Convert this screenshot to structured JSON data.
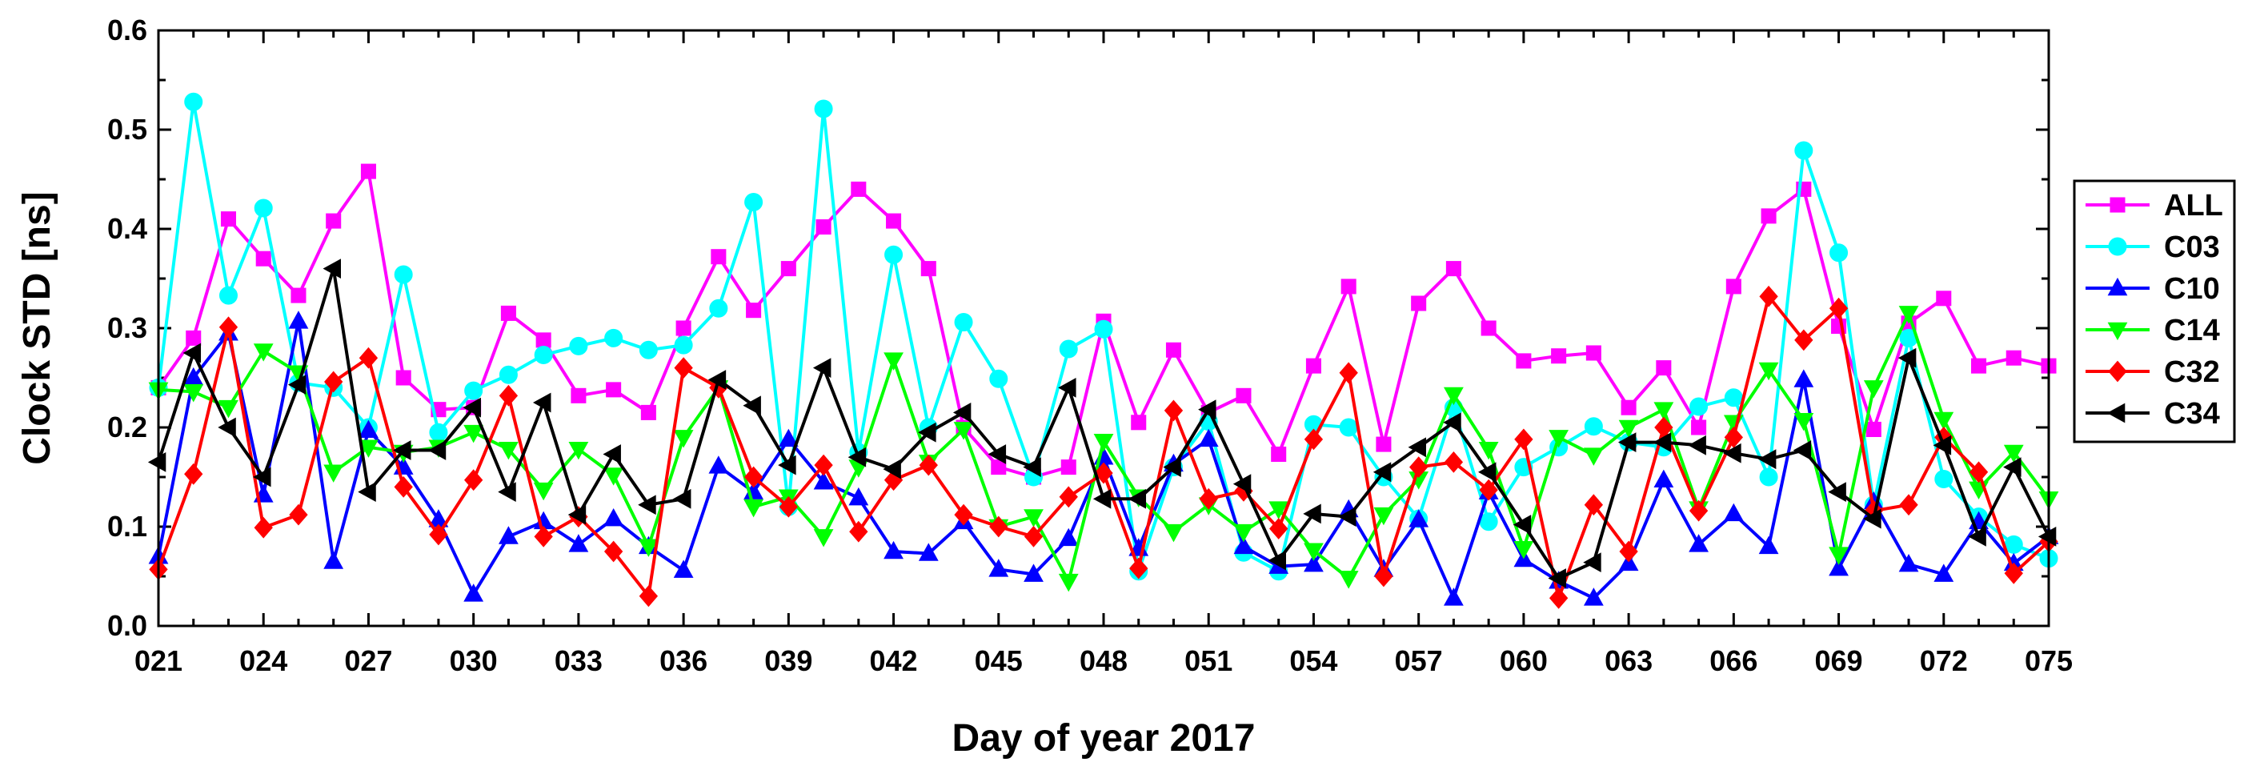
{
  "chart_data": {
    "type": "line",
    "title": "",
    "xlabel": "Day of year 2017",
    "ylabel": "Clock STD [ns]",
    "xlim": [
      21,
      75
    ],
    "ylim": [
      0,
      0.6
    ],
    "xticks": [
      "021",
      "024",
      "027",
      "030",
      "033",
      "036",
      "039",
      "042",
      "045",
      "048",
      "051",
      "054",
      "057",
      "060",
      "063",
      "066",
      "069",
      "072",
      "075"
    ],
    "yticks": [
      "0.0",
      "0.1",
      "0.2",
      "0.3",
      "0.4",
      "0.5",
      "0.6"
    ],
    "grid": false,
    "legend_position": "right",
    "x": [
      21,
      22,
      23,
      24,
      25,
      26,
      27,
      28,
      29,
      30,
      31,
      32,
      33,
      34,
      35,
      36,
      37,
      38,
      39,
      40,
      41,
      42,
      43,
      44,
      45,
      46,
      47,
      48,
      49,
      50,
      51,
      52,
      53,
      54,
      55,
      56,
      57,
      58,
      59,
      60,
      61,
      62,
      63,
      64,
      65,
      66,
      67,
      68,
      69,
      70,
      71,
      72,
      73,
      74,
      75
    ],
    "series": [
      {
        "name": "ALL",
        "color": "#ff00ff",
        "marker": "square",
        "values": [
          0.24,
          0.29,
          0.41,
          0.37,
          0.333,
          0.408,
          0.458,
          0.25,
          0.218,
          0.22,
          0.315,
          0.288,
          0.232,
          0.238,
          0.215,
          0.3,
          0.372,
          0.318,
          0.36,
          0.402,
          0.44,
          0.408,
          0.36,
          0.2,
          0.16,
          0.15,
          0.16,
          0.307,
          0.205,
          0.278,
          0.215,
          0.232,
          0.173,
          0.262,
          0.342,
          0.183,
          0.325,
          0.36,
          0.3,
          0.267,
          0.272,
          0.275,
          0.22,
          0.26,
          0.2,
          0.342,
          0.413,
          0.44,
          0.302,
          0.198,
          0.305,
          0.33,
          0.262,
          0.27,
          0.262
        ]
      },
      {
        "name": "C03",
        "color": "#00ffff",
        "marker": "circle",
        "values": [
          0.24,
          0.528,
          0.333,
          0.421,
          0.245,
          0.24,
          0.2,
          0.354,
          0.195,
          0.237,
          0.253,
          0.273,
          0.282,
          0.29,
          0.278,
          0.283,
          0.32,
          0.427,
          0.12,
          0.521,
          0.175,
          0.374,
          0.2,
          0.306,
          0.249,
          0.15,
          0.279,
          0.299,
          0.055,
          0.16,
          0.206,
          0.074,
          0.055,
          0.203,
          0.2,
          0.15,
          0.108,
          0.22,
          0.105,
          0.16,
          0.18,
          0.201,
          0.185,
          0.18,
          0.221,
          0.23,
          0.15,
          0.479,
          0.376,
          0.122,
          0.29,
          0.148,
          0.11,
          0.082,
          0.068
        ]
      },
      {
        "name": "C10",
        "color": "#0000ff",
        "marker": "triangle-up",
        "values": [
          0.07,
          0.25,
          0.295,
          0.132,
          0.307,
          0.065,
          0.197,
          0.16,
          0.107,
          0.032,
          0.09,
          0.105,
          0.082,
          0.108,
          0.08,
          0.056,
          0.161,
          0.135,
          0.188,
          0.145,
          0.129,
          0.075,
          0.073,
          0.105,
          0.057,
          0.052,
          0.088,
          0.17,
          0.078,
          0.163,
          0.188,
          0.08,
          0.06,
          0.062,
          0.117,
          0.057,
          0.107,
          0.028,
          0.135,
          0.067,
          0.045,
          0.028,
          0.063,
          0.147,
          0.082,
          0.113,
          0.08,
          0.248,
          0.058,
          0.125,
          0.062,
          0.052,
          0.105,
          0.063,
          0.09
        ]
      },
      {
        "name": "C14",
        "color": "#00ff00",
        "marker": "triangle-down",
        "values": [
          0.238,
          0.236,
          0.22,
          0.277,
          0.255,
          0.155,
          0.18,
          0.175,
          0.18,
          0.195,
          0.178,
          0.137,
          0.178,
          0.152,
          0.08,
          0.19,
          0.24,
          0.12,
          0.13,
          0.09,
          0.16,
          0.268,
          0.165,
          0.198,
          0.1,
          0.11,
          0.045,
          0.186,
          0.13,
          0.095,
          0.122,
          0.095,
          0.118,
          0.076,
          0.048,
          0.112,
          0.148,
          0.233,
          0.178,
          0.078,
          0.19,
          0.172,
          0.2,
          0.218,
          0.118,
          0.205,
          0.258,
          0.207,
          0.072,
          0.24,
          0.315,
          0.208,
          0.138,
          0.175,
          0.128
        ]
      },
      {
        "name": "C32",
        "color": "#ff0000",
        "marker": "diamond",
        "values": [
          0.057,
          0.153,
          0.301,
          0.099,
          0.112,
          0.246,
          0.27,
          0.14,
          0.092,
          0.147,
          0.232,
          0.09,
          0.11,
          0.075,
          0.03,
          0.26,
          0.24,
          0.15,
          0.12,
          0.162,
          0.095,
          0.147,
          0.162,
          0.112,
          0.1,
          0.09,
          0.13,
          0.154,
          0.058,
          0.217,
          0.128,
          0.136,
          0.098,
          0.188,
          0.255,
          0.05,
          0.16,
          0.165,
          0.137,
          0.188,
          0.028,
          0.122,
          0.075,
          0.2,
          0.116,
          0.19,
          0.332,
          0.288,
          0.32,
          0.116,
          0.122,
          0.19,
          0.155,
          0.053,
          0.085
        ]
      },
      {
        "name": "C34",
        "color": "#000000",
        "marker": "triangle-left",
        "values": [
          0.165,
          0.275,
          0.2,
          0.15,
          0.243,
          0.36,
          0.135,
          0.177,
          0.177,
          0.22,
          0.135,
          0.225,
          0.112,
          0.173,
          0.122,
          0.128,
          0.248,
          0.222,
          0.162,
          0.26,
          0.17,
          0.158,
          0.195,
          0.215,
          0.173,
          0.16,
          0.24,
          0.128,
          0.128,
          0.16,
          0.218,
          0.143,
          0.066,
          0.113,
          0.11,
          0.155,
          0.18,
          0.205,
          0.155,
          0.102,
          0.048,
          0.064,
          0.185,
          0.185,
          0.182,
          0.174,
          0.168,
          0.177,
          0.135,
          0.108,
          0.27,
          0.182,
          0.09,
          0.16,
          0.09
        ]
      }
    ]
  }
}
